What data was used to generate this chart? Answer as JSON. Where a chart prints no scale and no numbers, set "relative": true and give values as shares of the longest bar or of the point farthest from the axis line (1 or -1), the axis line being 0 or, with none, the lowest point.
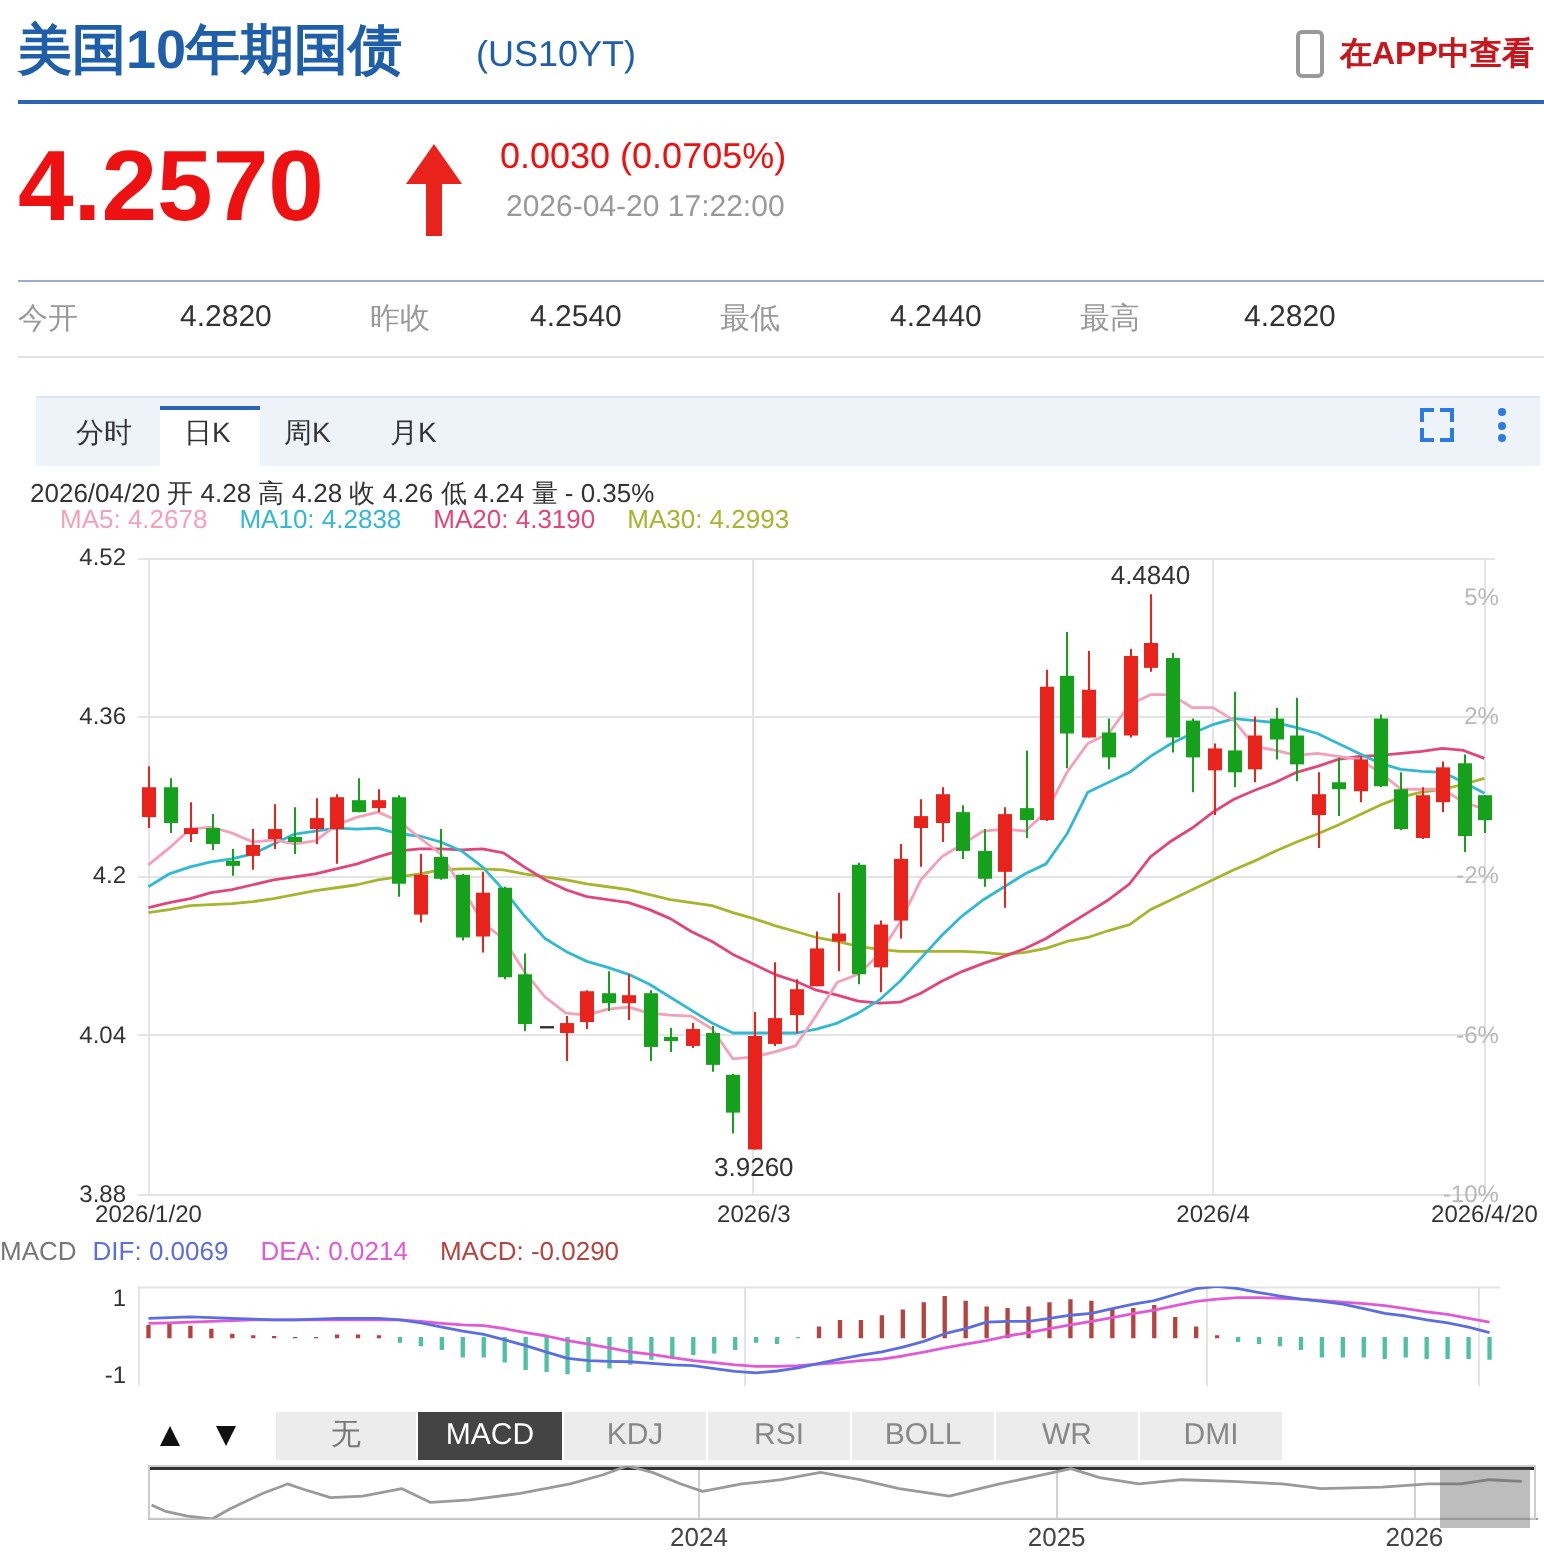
{
  "chart_data": [
    {
      "type": "other",
      "title": "美国10年期国债",
      "subtitle": "(US10YT)",
      "annotations": [
        "在APP中查看",
        "4.2570",
        "0.0030 (0.0705%)",
        "2026-04-20 17:22:00",
        "今开",
        "4.2820",
        "昨收",
        "4.2540",
        "最低",
        "4.2440",
        "最高",
        "4.2820",
        "分时",
        "日K",
        "周K",
        "月K",
        "无",
        "MACD",
        "KDJ",
        "RSI",
        "BOLL",
        "WR",
        "DMI"
      ]
    },
    {
      "type": "candlestick",
      "subtitle": "2026/04/20 开 4.28 高 4.28 收 4.26 低 4.24 量 - 0.35%",
      "categories": [
        "2026/1/20",
        null,
        null,
        null,
        null,
        null,
        null,
        null,
        null,
        null,
        null,
        null,
        null,
        null,
        null,
        null,
        null,
        null,
        null,
        null,
        null,
        null,
        null,
        null,
        null,
        null,
        null,
        null,
        null,
        "2026/3",
        null,
        null,
        null,
        null,
        null,
        null,
        null,
        null,
        null,
        null,
        null,
        null,
        null,
        null,
        null,
        null,
        null,
        null,
        null,
        null,
        null,
        "2026/4",
        null,
        null,
        null,
        null,
        null,
        null,
        null,
        null,
        null,
        null,
        null,
        null,
        "2026/4/20"
      ],
      "ohlc": [
        [
          4.26,
          4.311,
          4.249,
          4.29
        ],
        [
          4.29,
          4.299,
          4.244,
          4.254
        ],
        [
          4.243,
          4.275,
          4.235,
          4.249
        ],
        [
          4.249,
          4.263,
          4.227,
          4.233
        ],
        [
          4.216,
          4.228,
          4.201,
          4.211
        ],
        [
          4.221,
          4.248,
          4.207,
          4.232
        ],
        [
          4.238,
          4.273,
          4.228,
          4.248
        ],
        [
          4.24,
          4.27,
          4.223,
          4.235
        ],
        [
          4.248,
          4.279,
          4.233,
          4.259
        ],
        [
          4.248,
          4.283,
          4.213,
          4.28
        ],
        [
          4.277,
          4.299,
          4.265,
          4.265
        ],
        [
          4.269,
          4.288,
          4.265,
          4.277
        ],
        [
          4.28,
          4.282,
          4.18,
          4.193
        ],
        [
          4.162,
          4.223,
          4.154,
          4.202
        ],
        [
          4.22,
          4.248,
          4.197,
          4.198
        ],
        [
          4.202,
          4.203,
          4.136,
          4.139
        ],
        [
          4.14,
          4.205,
          4.124,
          4.184
        ],
        [
          4.189,
          4.19,
          4.097,
          4.099
        ],
        [
          4.102,
          4.123,
          4.045,
          4.052
        ],
        [
          4.05,
          4.05,
          4.05,
          4.05
        ],
        [
          4.043,
          4.06,
          4.015,
          4.053
        ],
        [
          4.054,
          4.086,
          4.047,
          4.085
        ],
        [
          4.083,
          4.105,
          4.065,
          4.073
        ],
        [
          4.073,
          4.102,
          4.056,
          4.081
        ],
        [
          4.083,
          4.086,
          4.015,
          4.029
        ],
        [
          4.039,
          4.048,
          4.024,
          4.035
        ],
        [
          4.03,
          4.053,
          4.028,
          4.047
        ],
        [
          4.043,
          4.05,
          4.004,
          4.011
        ],
        [
          4.001,
          4.002,
          3.942,
          3.963
        ],
        [
          3.926,
          4.064,
          3.926,
          4.04
        ],
        [
          4.032,
          4.114,
          4.03,
          4.058
        ],
        [
          4.061,
          4.097,
          4.043,
          4.087
        ],
        [
          4.09,
          4.145,
          4.09,
          4.128
        ],
        [
          4.135,
          4.184,
          4.105,
          4.143
        ],
        [
          4.212,
          4.214,
          4.092,
          4.102
        ],
        [
          4.109,
          4.156,
          4.084,
          4.152
        ],
        [
          4.156,
          4.233,
          4.138,
          4.218
        ],
        [
          4.249,
          4.278,
          4.21,
          4.261
        ],
        [
          4.254,
          4.29,
          4.235,
          4.283
        ],
        [
          4.265,
          4.272,
          4.218,
          4.226
        ],
        [
          4.226,
          4.248,
          4.19,
          4.198
        ],
        [
          4.205,
          4.27,
          4.169,
          4.263
        ],
        [
          4.269,
          4.327,
          4.239,
          4.257
        ],
        [
          4.257,
          4.408,
          4.256,
          4.391
        ],
        [
          4.402,
          4.446,
          4.309,
          4.344
        ],
        [
          4.34,
          4.427,
          4.34,
          4.388
        ],
        [
          4.345,
          4.359,
          4.308,
          4.32
        ],
        [
          4.342,
          4.429,
          4.34,
          4.422
        ],
        [
          4.41,
          4.484,
          4.406,
          4.435
        ],
        [
          4.42,
          4.425,
          4.325,
          4.34
        ],
        [
          4.357,
          4.359,
          4.285,
          4.32
        ],
        [
          4.307,
          4.334,
          4.262,
          4.329
        ],
        [
          4.327,
          4.386,
          4.29,
          4.305
        ],
        [
          4.308,
          4.361,
          4.295,
          4.342
        ],
        [
          4.359,
          4.37,
          4.318,
          4.338
        ],
        [
          4.342,
          4.38,
          4.296,
          4.313
        ],
        [
          4.262,
          4.305,
          4.229,
          4.283
        ],
        [
          4.295,
          4.32,
          4.261,
          4.288
        ],
        [
          4.286,
          4.321,
          4.275,
          4.318
        ],
        [
          4.359,
          4.363,
          4.29,
          4.291
        ],
        [
          4.288,
          4.305,
          4.247,
          4.248
        ],
        [
          4.239,
          4.29,
          4.238,
          4.282
        ],
        [
          4.275,
          4.316,
          4.265,
          4.31
        ],
        [
          4.314,
          4.323,
          4.225,
          4.241
        ],
        [
          4.282,
          4.282,
          4.244,
          4.257
        ]
      ],
      "colors": [
        "#e8231c",
        "#16a11d",
        "#e8231c",
        "#16a11d",
        "#16a11d",
        "#e8231c",
        "#e8231c",
        "#16a11d",
        "#e8231c",
        "#e8231c",
        "#16a11d",
        "#e8231c",
        "#16a11d",
        "#e8231c",
        "#16a11d",
        "#16a11d",
        "#e8231c",
        "#16a11d",
        "#16a11d",
        "#333333",
        "#e8231c",
        "#e8231c",
        "#16a11d",
        "#e8231c",
        "#16a11d",
        "#16a11d",
        "#e8231c",
        "#16a11d",
        "#16a11d",
        "#e8231c",
        "#e8231c",
        "#e8231c",
        "#e8231c",
        "#e8231c",
        "#16a11d",
        "#e8231c",
        "#e8231c",
        "#e8231c",
        "#e8231c",
        "#16a11d",
        "#16a11d",
        "#e8231c",
        "#16a11d",
        "#e8231c",
        "#16a11d",
        "#e8231c",
        "#16a11d",
        "#e8231c",
        "#e8231c",
        "#16a11d",
        "#16a11d",
        "#e8231c",
        "#16a11d",
        "#e8231c",
        "#16a11d",
        "#16a11d",
        "#e8231c",
        "#16a11d",
        "#e8231c",
        "#16a11d",
        "#16a11d",
        "#e8231c",
        "#e8231c",
        "#16a11d",
        "#16a11d"
      ],
      "series": [
        {
          "name": "MA5: 4.2678",
          "type": "line",
          "color": "#f4a0b9",
          "values": [
            4.212,
            4.229,
            4.248,
            4.25,
            4.244,
            4.235,
            4.237,
            4.233,
            4.236,
            4.252,
            4.26,
            4.265,
            4.256,
            4.239,
            4.223,
            4.19,
            4.154,
            4.138,
            4.105,
            4.079,
            4.063,
            4.061,
            4.067,
            4.069,
            4.063,
            4.061,
            4.06,
            4.047,
            4.017,
            4.019,
            4.024,
            4.03,
            4.061,
            4.094,
            4.102,
            4.122,
            4.154,
            4.197,
            4.22,
            4.233,
            4.246,
            4.248,
            4.246,
            4.265,
            4.305,
            4.334,
            4.344,
            4.373,
            4.383,
            4.383,
            4.37,
            4.37,
            4.357,
            4.331,
            4.327,
            4.322,
            4.324,
            4.321,
            4.318,
            4.305,
            4.288,
            4.288,
            4.288,
            4.275,
            4.268
          ]
        },
        {
          "name": "MA10: 4.2838",
          "type": "line",
          "color": "#31b9d3",
          "values": [
            4.19,
            4.203,
            4.21,
            4.215,
            4.218,
            4.223,
            4.233,
            4.243,
            4.246,
            4.249,
            4.248,
            4.249,
            4.243,
            4.241,
            4.235,
            4.226,
            4.21,
            4.187,
            4.161,
            4.138,
            4.125,
            4.115,
            4.109,
            4.102,
            4.092,
            4.079,
            4.066,
            4.053,
            4.043,
            4.043,
            4.043,
            4.043,
            4.047,
            4.053,
            4.063,
            4.076,
            4.095,
            4.118,
            4.141,
            4.161,
            4.177,
            4.19,
            4.203,
            4.213,
            4.243,
            4.285,
            4.295,
            4.305,
            4.321,
            4.334,
            4.344,
            4.353,
            4.359,
            4.357,
            4.355,
            4.35,
            4.344,
            4.334,
            4.324,
            4.314,
            4.308,
            4.306,
            4.305,
            4.295,
            4.284
          ]
        },
        {
          "name": "MA20: 4.3190",
          "type": "line",
          "color": "#e2457a",
          "values": [
            4.169,
            4.174,
            4.178,
            4.184,
            4.187,
            4.192,
            4.197,
            4.2,
            4.203,
            4.208,
            4.213,
            4.22,
            4.226,
            4.228,
            4.228,
            4.227,
            4.228,
            4.224,
            4.21,
            4.197,
            4.187,
            4.18,
            4.177,
            4.174,
            4.167,
            4.158,
            4.145,
            4.135,
            4.122,
            4.112,
            4.102,
            4.095,
            4.086,
            4.081,
            4.075,
            4.073,
            4.074,
            4.083,
            4.095,
            4.105,
            4.113,
            4.12,
            4.128,
            4.138,
            4.151,
            4.164,
            4.177,
            4.193,
            4.22,
            4.236,
            4.249,
            4.265,
            4.278,
            4.287,
            4.295,
            4.305,
            4.311,
            4.318,
            4.321,
            4.322,
            4.324,
            4.326,
            4.329,
            4.327,
            4.319
          ]
        },
        {
          "name": "MA30: 4.2993",
          "type": "line",
          "color": "#a6b52c",
          "values": [
            4.164,
            4.167,
            4.171,
            4.172,
            4.173,
            4.175,
            4.178,
            4.182,
            4.186,
            4.189,
            4.192,
            4.197,
            4.2,
            4.203,
            4.207,
            4.208,
            4.208,
            4.207,
            4.203,
            4.2,
            4.197,
            4.193,
            4.19,
            4.187,
            4.182,
            4.177,
            4.174,
            4.171,
            4.164,
            4.158,
            4.151,
            4.145,
            4.139,
            4.135,
            4.13,
            4.127,
            4.125,
            4.125,
            4.125,
            4.125,
            4.124,
            4.122,
            4.124,
            4.128,
            4.135,
            4.139,
            4.146,
            4.152,
            4.167,
            4.177,
            4.187,
            4.197,
            4.207,
            4.216,
            4.226,
            4.235,
            4.243,
            4.252,
            4.262,
            4.272,
            4.28,
            4.285,
            4.288,
            4.293,
            4.299
          ]
        }
      ],
      "ylim": [
        3.88,
        4.52
      ],
      "yticks": [
        3.88,
        4.04,
        4.2,
        4.36,
        4.52
      ],
      "y2lim": [
        -10,
        6
      ],
      "y2ticks": [
        {
          "value": -10,
          "label": "-10%"
        },
        {
          "value": -6,
          "label": "-6%"
        },
        {
          "value": -2,
          "label": "-2%"
        },
        {
          "value": 2,
          "label": "2%"
        },
        {
          "value": 5,
          "label": "5%"
        }
      ],
      "grid": true,
      "legend": "top left",
      "annotations": [
        {
          "text": "4.4840",
          "y": 4.484
        },
        {
          "text": "3.9260",
          "y": 3.926
        }
      ]
    },
    {
      "type": "bar",
      "legend_title": "MACD",
      "categories": [
        "2026/1/20",
        null,
        null,
        null,
        null,
        null,
        null,
        null,
        null,
        null,
        null,
        null,
        null,
        null,
        null,
        null,
        null,
        null,
        null,
        null,
        null,
        null,
        null,
        null,
        null,
        null,
        null,
        null,
        null,
        "2026/3",
        null,
        null,
        null,
        null,
        null,
        null,
        null,
        null,
        null,
        null,
        null,
        null,
        null,
        null,
        null,
        null,
        null,
        null,
        null,
        null,
        null,
        "2026/4",
        null,
        null,
        null,
        null,
        null,
        null,
        null,
        null,
        null,
        null,
        null,
        null,
        "2026/4/20"
      ],
      "series": [
        {
          "name": "DIF: 0.0069",
          "type": "line",
          "color": "#5b6ee1",
          "values": [
            0.5,
            0.52,
            0.54,
            0.52,
            0.5,
            0.48,
            0.46,
            0.46,
            0.48,
            0.5,
            0.5,
            0.5,
            0.46,
            0.38,
            0.27,
            0.17,
            0.08,
            -0.06,
            -0.21,
            -0.38,
            -0.54,
            -0.6,
            -0.62,
            -0.63,
            -0.67,
            -0.71,
            -0.73,
            -0.81,
            -0.88,
            -0.92,
            -0.87,
            -0.79,
            -0.67,
            -0.56,
            -0.46,
            -0.37,
            -0.25,
            -0.1,
            0.1,
            0.23,
            0.4,
            0.42,
            0.42,
            0.5,
            0.58,
            0.63,
            0.75,
            0.87,
            0.96,
            1.12,
            1.27,
            1.33,
            1.27,
            1.17,
            1.08,
            1.0,
            0.94,
            0.87,
            0.75,
            0.63,
            0.56,
            0.46,
            0.38,
            0.27,
            0.13
          ]
        },
        {
          "name": "DEA: 0.0214",
          "type": "line",
          "color": "#e05ad8",
          "values": [
            0.37,
            0.38,
            0.4,
            0.42,
            0.44,
            0.46,
            0.46,
            0.46,
            0.46,
            0.46,
            0.46,
            0.46,
            0.46,
            0.42,
            0.37,
            0.33,
            0.31,
            0.23,
            0.13,
            0.04,
            -0.08,
            -0.17,
            -0.27,
            -0.37,
            -0.44,
            -0.52,
            -0.6,
            -0.65,
            -0.71,
            -0.75,
            -0.75,
            -0.73,
            -0.69,
            -0.65,
            -0.6,
            -0.56,
            -0.48,
            -0.38,
            -0.27,
            -0.17,
            -0.08,
            0.04,
            0.13,
            0.23,
            0.33,
            0.42,
            0.52,
            0.62,
            0.71,
            0.83,
            0.94,
            1.0,
            1.04,
            1.04,
            1.02,
            1.0,
            0.96,
            0.92,
            0.88,
            0.83,
            0.75,
            0.67,
            0.6,
            0.5,
            0.4
          ]
        },
        {
          "name": "MACD: -0.0290",
          "type": "bar",
          "color": "#b5433f",
          "colors": [
            "#b5433f",
            "#b5433f",
            "#b5433f",
            "#b5433f",
            "#b5433f",
            "#b5433f",
            "#b5433f",
            "#b5433f",
            "#b5433f",
            "#b5433f",
            "#b5433f",
            "#b5433f",
            "#4fc1a2",
            "#4fc1a2",
            "#4fc1a2",
            "#4fc1a2",
            "#4fc1a2",
            "#4fc1a2",
            "#4fc1a2",
            "#4fc1a2",
            "#4fc1a2",
            "#4fc1a2",
            "#4fc1a2",
            "#4fc1a2",
            "#4fc1a2",
            "#4fc1a2",
            "#4fc1a2",
            "#4fc1a2",
            "#4fc1a2",
            "#4fc1a2",
            "#4fc1a2",
            "#4fc1a2",
            "#b5433f",
            "#b5433f",
            "#b5433f",
            "#b5433f",
            "#b5433f",
            "#b5433f",
            "#b5433f",
            "#b5433f",
            "#b5433f",
            "#b5433f",
            "#b5433f",
            "#b5433f",
            "#b5433f",
            "#b5433f",
            "#b5433f",
            "#b5433f",
            "#b5433f",
            "#b5433f",
            "#b5433f",
            "#b5433f",
            "#4fc1a2",
            "#4fc1a2",
            "#4fc1a2",
            "#4fc1a2",
            "#4fc1a2",
            "#4fc1a2",
            "#4fc1a2",
            "#4fc1a2",
            "#4fc1a2",
            "#4fc1a2",
            "#4fc1a2",
            "#4fc1a2",
            "#4fc1a2"
          ],
          "values": [
            0.31,
            0.35,
            0.29,
            0.21,
            0.08,
            0.04,
            0.02,
            0,
            0,
            0.06,
            0.06,
            0.04,
            -0.12,
            -0.21,
            -0.31,
            -0.5,
            -0.5,
            -0.63,
            -0.83,
            -0.88,
            -0.94,
            -0.88,
            -0.79,
            -0.69,
            -0.56,
            -0.5,
            -0.44,
            -0.4,
            -0.31,
            -0.12,
            -0.15,
            0,
            0.27,
            0.44,
            0.44,
            0.56,
            0.71,
            0.9,
            1.06,
            0.94,
            0.79,
            0.75,
            0.79,
            0.9,
            0.98,
            0.94,
            0.75,
            0.75,
            0.83,
            0.52,
            0.27,
            0.04,
            -0.1,
            -0.15,
            -0.21,
            -0.31,
            -0.5,
            -0.5,
            -0.5,
            -0.54,
            -0.5,
            -0.54,
            -0.54,
            -0.54,
            -0.56
          ]
        }
      ],
      "ylim": [
        -1.25,
        1.33
      ],
      "yticks": [
        -1,
        1
      ],
      "grid": "x",
      "legend": "top left",
      "tick_labels": "y"
    },
    {
      "type": "line",
      "relative": true,
      "color": "#9a9a9a",
      "x": [
        2022.47,
        2022.51,
        2022.57,
        2022.64,
        2022.69,
        2022.78,
        2022.85,
        2022.89,
        2022.97,
        2023.06,
        2023.17,
        2023.25,
        2023.36,
        2023.5,
        2023.64,
        2023.73,
        2023.8,
        2023.87,
        2023.95,
        2024.01,
        2024.12,
        2024.23,
        2024.34,
        2024.45,
        2024.56,
        2024.7,
        2024.84,
        2024.96,
        2025.04,
        2025.12,
        2025.23,
        2025.35,
        2025.49,
        2025.63,
        2025.74,
        2025.91,
        2026.04,
        2026.13,
        2026.21,
        2026.3
      ],
      "values": [
        0.26,
        0.14,
        0.05,
        0,
        0.19,
        0.48,
        0.66,
        0.57,
        0.4,
        0.43,
        0.57,
        0.31,
        0.36,
        0.48,
        0.66,
        0.83,
        1,
        0.88,
        0.66,
        0.52,
        0.66,
        0.74,
        0.88,
        0.74,
        0.57,
        0.43,
        0.66,
        0.83,
        0.95,
        0.78,
        0.66,
        0.74,
        0.71,
        0.66,
        0.57,
        0.6,
        0.66,
        0.66,
        0.74,
        0.71
      ],
      "xlim": [
        2022.46,
        2026.34
      ],
      "xticks": [
        2024,
        2025,
        2026
      ],
      "grid": "x"
    }
  ]
}
